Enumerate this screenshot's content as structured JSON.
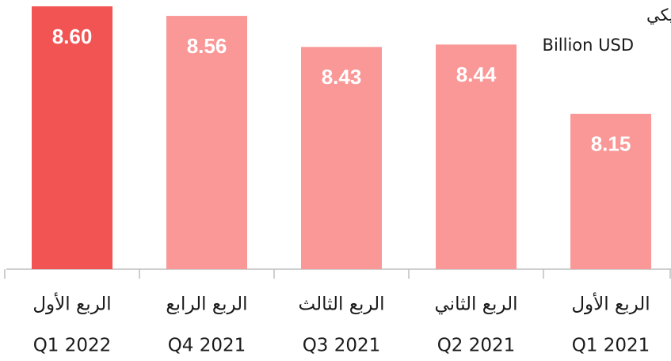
{
  "chart_data": {
    "type": "bar",
    "title": [
      "مليار دولار أمريكي",
      "Billion USD"
    ],
    "categories": [
      [
        "الربع الأول",
        "Q1 2022"
      ],
      [
        "الربع الرابع",
        "Q4 2021"
      ],
      [
        "الربع الثالث",
        "Q3 2021"
      ],
      [
        "الربع الثاني",
        "Q2 2021"
      ],
      [
        "الربع الأول",
        "Q1 2021"
      ]
    ],
    "values": [
      8.6,
      8.56,
      8.43,
      8.44,
      8.15
    ],
    "value_labels": [
      "8.60",
      "8.56",
      "8.43",
      "8.44",
      "8.15"
    ],
    "colors": [
      "#f25353",
      "#fa9797",
      "#fa9797",
      "#fa9797",
      "#fa9797"
    ],
    "ylim": [
      7.5,
      8.6
    ]
  }
}
